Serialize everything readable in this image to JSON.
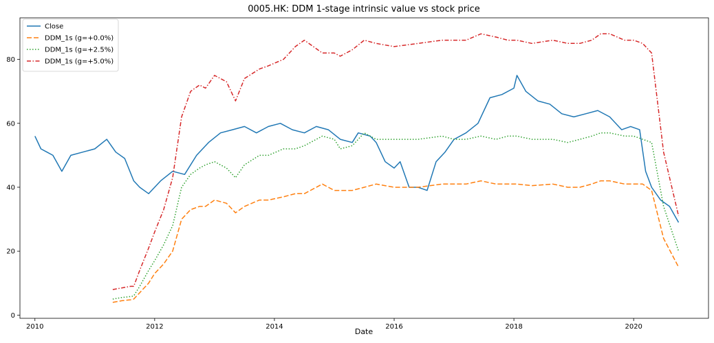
{
  "chart_data": {
    "type": "line",
    "title": "0005.HK: DDM 1-stage intrinsic value vs stock price",
    "xlabel": "Date",
    "ylabel": "",
    "xlim": [
      2009.75,
      2021.25
    ],
    "ylim": [
      -1,
      93
    ],
    "xticks": [
      2010,
      2012,
      2014,
      2016,
      2018,
      2020
    ],
    "yticks": [
      0,
      20,
      40,
      60,
      80
    ],
    "grid": false,
    "legend_position": "top-left",
    "series": [
      {
        "name": "Close",
        "color": "#1f77b4",
        "style": "solid",
        "x": [
          2010.0,
          2010.1,
          2010.2,
          2010.3,
          2010.45,
          2010.6,
          2010.8,
          2011.0,
          2011.2,
          2011.35,
          2011.5,
          2011.65,
          2011.75,
          2011.9,
          2012.0,
          2012.1,
          2012.3,
          2012.5,
          2012.7,
          2012.9,
          2013.1,
          2013.3,
          2013.5,
          2013.7,
          2013.9,
          2014.1,
          2014.3,
          2014.5,
          2014.7,
          2014.9,
          2015.1,
          2015.3,
          2015.4,
          2015.6,
          2015.7,
          2015.85,
          2016.0,
          2016.1,
          2016.25,
          2016.4,
          2016.55,
          2016.7,
          2016.85,
          2017.0,
          2017.2,
          2017.4,
          2017.6,
          2017.8,
          2018.0,
          2018.05,
          2018.2,
          2018.4,
          2018.6,
          2018.8,
          2019.0,
          2019.2,
          2019.4,
          2019.6,
          2019.8,
          2019.95,
          2020.1,
          2020.2,
          2020.3,
          2020.45,
          2020.6,
          2020.75
        ],
        "y": [
          56,
          52,
          51,
          50,
          45,
          50,
          51,
          52,
          55,
          51,
          49,
          42,
          40,
          38,
          40,
          42,
          45,
          44,
          50,
          54,
          57,
          58,
          59,
          57,
          59,
          60,
          58,
          57,
          59,
          58,
          55,
          54,
          57,
          56,
          54,
          48,
          46,
          48,
          40,
          40,
          39,
          48,
          51,
          55,
          57,
          60,
          68,
          69,
          71,
          75,
          70,
          67,
          66,
          63,
          62,
          63,
          64,
          62,
          58,
          59,
          58,
          45,
          40,
          36,
          34,
          29
        ]
      },
      {
        "name": "DDM_1s (g=+0.0%)",
        "color": "#ff7f0e",
        "style": "dashed",
        "x": [
          2011.3,
          2011.45,
          2011.6,
          2011.65,
          2011.75,
          2011.9,
          2012.0,
          2012.15,
          2012.3,
          2012.45,
          2012.6,
          2012.75,
          2012.85,
          2013.0,
          2013.2,
          2013.35,
          2013.5,
          2013.75,
          2013.9,
          2014.15,
          2014.35,
          2014.5,
          2014.8,
          2015.0,
          2015.1,
          2015.3,
          2015.5,
          2015.7,
          2016.0,
          2016.4,
          2016.8,
          2017.0,
          2017.2,
          2017.45,
          2017.7,
          2017.9,
          2018.05,
          2018.3,
          2018.65,
          2018.9,
          2019.1,
          2019.3,
          2019.45,
          2019.6,
          2019.85,
          2020.0,
          2020.15,
          2020.3,
          2020.5,
          2020.75
        ],
        "y": [
          4,
          4.5,
          4.8,
          5,
          7,
          10,
          13,
          16,
          20,
          30,
          33,
          34,
          34,
          36,
          35,
          32,
          34,
          36,
          36,
          37,
          38,
          38,
          41,
          39,
          39,
          39,
          40,
          41,
          40,
          40,
          41,
          41,
          41,
          42,
          41,
          41,
          41,
          40.5,
          41,
          40,
          40,
          41,
          42,
          42,
          41,
          41,
          41,
          39,
          24,
          15
        ]
      },
      {
        "name": "DDM_1s (g=+2.5%)",
        "color": "#2ca02c",
        "style": "dotted",
        "x": [
          2011.3,
          2011.45,
          2011.6,
          2011.65,
          2011.75,
          2011.9,
          2012.0,
          2012.15,
          2012.3,
          2012.45,
          2012.6,
          2012.75,
          2012.85,
          2013.0,
          2013.2,
          2013.35,
          2013.5,
          2013.75,
          2013.9,
          2014.15,
          2014.35,
          2014.5,
          2014.8,
          2015.0,
          2015.1,
          2015.3,
          2015.5,
          2015.7,
          2016.0,
          2016.4,
          2016.8,
          2017.0,
          2017.2,
          2017.45,
          2017.7,
          2017.9,
          2018.05,
          2018.3,
          2018.65,
          2018.9,
          2019.1,
          2019.3,
          2019.45,
          2019.6,
          2019.85,
          2020.0,
          2020.15,
          2020.3,
          2020.5,
          2020.75
        ],
        "y": [
          5,
          5.5,
          5.8,
          6,
          9,
          14,
          17,
          22,
          28,
          40,
          44,
          46,
          47,
          48,
          46,
          43,
          47,
          50,
          50,
          52,
          52,
          53,
          56,
          55,
          52,
          53,
          57,
          55,
          55,
          55,
          56,
          55,
          55,
          56,
          55,
          56,
          56,
          55,
          55,
          54,
          55,
          56,
          57,
          57,
          56,
          56,
          55,
          54,
          34,
          20
        ]
      },
      {
        "name": "DDM_1s (g=+5.0%)",
        "color": "#d62728",
        "style": "dashdot",
        "x": [
          2011.3,
          2011.45,
          2011.6,
          2011.65,
          2011.75,
          2011.9,
          2012.0,
          2012.15,
          2012.3,
          2012.45,
          2012.6,
          2012.75,
          2012.85,
          2013.0,
          2013.2,
          2013.35,
          2013.5,
          2013.75,
          2013.9,
          2014.15,
          2014.35,
          2014.5,
          2014.8,
          2015.0,
          2015.1,
          2015.3,
          2015.5,
          2015.7,
          2016.0,
          2016.4,
          2016.8,
          2017.0,
          2017.2,
          2017.45,
          2017.7,
          2017.9,
          2018.05,
          2018.3,
          2018.65,
          2018.9,
          2019.1,
          2019.3,
          2019.45,
          2019.6,
          2019.85,
          2020.0,
          2020.15,
          2020.3,
          2020.5,
          2020.75
        ],
        "y": [
          8,
          8.5,
          9,
          9,
          14,
          21,
          26,
          33,
          43,
          62,
          70,
          72,
          71,
          75,
          73,
          67,
          74,
          77,
          78,
          80,
          84,
          86,
          82,
          82,
          81,
          83,
          86,
          85,
          84,
          85,
          86,
          86,
          86,
          88,
          87,
          86,
          86,
          85,
          86,
          85,
          85,
          86,
          88,
          88,
          86,
          86,
          85,
          82,
          51,
          31
        ]
      }
    ]
  }
}
